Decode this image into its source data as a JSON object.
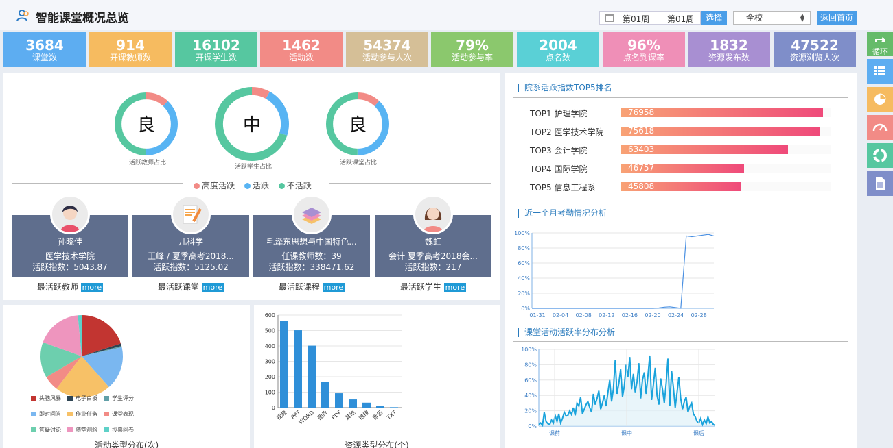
{
  "header": {
    "title": "智能课堂概况总览",
    "week_from": "第01周",
    "week_sep": "-",
    "week_to": "第01周",
    "choose_label": "选择",
    "school_select": "全校",
    "home_label": "返回首页"
  },
  "stats": [
    {
      "value": "3684",
      "label": "课堂数",
      "color": "#5dadf1"
    },
    {
      "value": "914",
      "label": "开课教师数",
      "color": "#f6bb60"
    },
    {
      "value": "16102",
      "label": "开课学生数",
      "color": "#56c7a0"
    },
    {
      "value": "1462",
      "label": "活动数",
      "color": "#f28b86"
    },
    {
      "value": "54374",
      "label": "活动参与人次",
      "color": "#d5bf97"
    },
    {
      "value": "79%",
      "label": "活动参与率",
      "color": "#8bc86d"
    },
    {
      "value": "2004",
      "label": "点名数",
      "color": "#5ad0d6"
    },
    {
      "value": "96%",
      "label": "点名到课率",
      "color": "#ef8fb7"
    },
    {
      "value": "1832",
      "label": "资源发布数",
      "color": "#a88fd2"
    },
    {
      "value": "47522",
      "label": "资源浏览人次",
      "color": "#7f8ec9"
    }
  ],
  "sidebar": {
    "loop_label": "循环",
    "colors": [
      "#66bb6a",
      "#5dadf1",
      "#f6bb60",
      "#f28b86",
      "#56c7a0",
      "#7f8ec9"
    ],
    "icons": [
      "loop-icon",
      "list-icon",
      "pie-chart-icon",
      "gauge-icon",
      "donut-chart-icon",
      "document-icon"
    ]
  },
  "donuts": [
    {
      "grade": "良",
      "caption": "活跃教师占比",
      "high": 0.12,
      "active": 0.38,
      "inactive": 0.5
    },
    {
      "grade": "中",
      "caption": "活跃学生占比",
      "high": 0.08,
      "active": 0.22,
      "inactive": 0.7
    },
    {
      "grade": "良",
      "caption": "活跃课堂占比",
      "high": 0.12,
      "active": 0.38,
      "inactive": 0.5
    }
  ],
  "donut_legend": [
    {
      "label": "高度活跃",
      "color": "#f28b86"
    },
    {
      "label": "活跃",
      "color": "#58b4f3"
    },
    {
      "label": "不活跃",
      "color": "#56c7a0"
    }
  ],
  "top_cards": [
    {
      "name": "孙晓佳",
      "sub": "医学技术学院",
      "index": "活跃指数：5043.87",
      "caption": "最活跃教师",
      "more": "more"
    },
    {
      "name": "儿科学",
      "sub": "王峰 / 夏季高考2018...",
      "index": "活跃指数：5125.02",
      "caption": "最活跃课堂",
      "more": "more"
    },
    {
      "name": "毛泽东思想与中国特色...",
      "sub": "任课教师数：39",
      "index": "活跃指数：338471.62",
      "caption": "最活跃课程",
      "more": "more"
    },
    {
      "name": "魏虹",
      "sub": "会计 夏季高考2018会...",
      "index": "活跃指数：217",
      "caption": "最活跃学生",
      "more": "more"
    }
  ],
  "ranking": {
    "title": "院系活跃指数TOP5排名",
    "max": 80000,
    "items": [
      {
        "label": "TOP1 护理学院",
        "value": "76958"
      },
      {
        "label": "TOP2 医学技术学院",
        "value": "75618"
      },
      {
        "label": "TOP3 会计学院",
        "value": "63403"
      },
      {
        "label": "TOP4 国际学院",
        "value": "46757"
      },
      {
        "label": "TOP5 信息工程系",
        "value": "45808"
      }
    ]
  },
  "attendance": {
    "title": "近一个月考勤情况分析"
  },
  "activity_rate": {
    "title": "课堂活动活跃率分布分析"
  },
  "chart_data": [
    {
      "type": "pie",
      "caption": "活动类型分布(次)",
      "labels": [
        "头脑风暴",
        "电子白板",
        "学生评分",
        "即时问答",
        "作业任务",
        "课堂表现",
        "答疑讨论",
        "随堂测验",
        "投票问卷"
      ],
      "colors": [
        "#c23531",
        "#2f4554",
        "#61a0a8",
        "#7ab7f0",
        "#f7c167",
        "#f28b86",
        "#6dcfae",
        "#ee95be",
        "#5ed1c8"
      ],
      "values": [
        20,
        1,
        0.5,
        17,
        22,
        6,
        14,
        18,
        1.5
      ]
    },
    {
      "type": "bar",
      "caption": "资源类型分布(个)",
      "categories": [
        "视频",
        "PPT",
        "WORD",
        "图片",
        "PDF",
        "其他",
        "链接",
        "音乐",
        "TXT"
      ],
      "values": [
        562,
        502,
        402,
        168,
        93,
        53,
        32,
        12,
        3
      ],
      "ylim": [
        0,
        600
      ],
      "yticks": [
        "0",
        "100",
        "200",
        "300",
        "400",
        "500",
        "600"
      ]
    },
    {
      "type": "line",
      "caption": "近一个月考勤情况分析",
      "x_labels": [
        "01-31",
        "02-04",
        "02-08",
        "02-12",
        "02-16",
        "02-20",
        "02-24",
        "02-28"
      ],
      "yticks": [
        "0%",
        "20%",
        "40%",
        "60%",
        "80%",
        "100%"
      ],
      "ylim": [
        0,
        100
      ],
      "x": [
        0,
        1,
        2,
        3,
        4,
        5,
        6,
        7,
        8,
        9,
        10,
        11,
        12,
        13,
        14,
        15,
        16,
        17,
        18,
        19,
        20,
        21,
        22,
        23,
        24,
        25,
        26,
        27,
        28,
        29,
        30,
        31,
        32,
        33
      ],
      "values": [
        0,
        0,
        0,
        0,
        0,
        0,
        0,
        0,
        0,
        0,
        0,
        0,
        0,
        0,
        0,
        0,
        0,
        0,
        0,
        0,
        0,
        0,
        0,
        0.5,
        1.5,
        2,
        1,
        0,
        96,
        95,
        96,
        97,
        98,
        96
      ]
    },
    {
      "type": "area",
      "caption": "课堂活动活跃率分布分析",
      "x_labels": [
        "课前",
        "课中",
        "课后"
      ],
      "yticks": [
        "0%",
        "20%",
        "40%",
        "60%",
        "80%",
        "100%"
      ],
      "ylim": [
        0,
        100
      ],
      "values": [
        2,
        4,
        1,
        18,
        6,
        3,
        2,
        8,
        4,
        14,
        6,
        16,
        4,
        10,
        18,
        13,
        14,
        20,
        15,
        24,
        14,
        30,
        26,
        38,
        16,
        22,
        28,
        32,
        24,
        18,
        42,
        28,
        36,
        46,
        22,
        30,
        40,
        26,
        44,
        60,
        32,
        48,
        86,
        42,
        56,
        74,
        38,
        52,
        80,
        64,
        90,
        48,
        68,
        44,
        58,
        82,
        36,
        60,
        70,
        42,
        66,
        92,
        34,
        54,
        76,
        40,
        28,
        62,
        48,
        30,
        56,
        88,
        26,
        72,
        50,
        24,
        44,
        64,
        36,
        22,
        32,
        38,
        18,
        26,
        30,
        16,
        12,
        6,
        4,
        10,
        2,
        8,
        3,
        12,
        4,
        6,
        2,
        1
      ]
    }
  ]
}
